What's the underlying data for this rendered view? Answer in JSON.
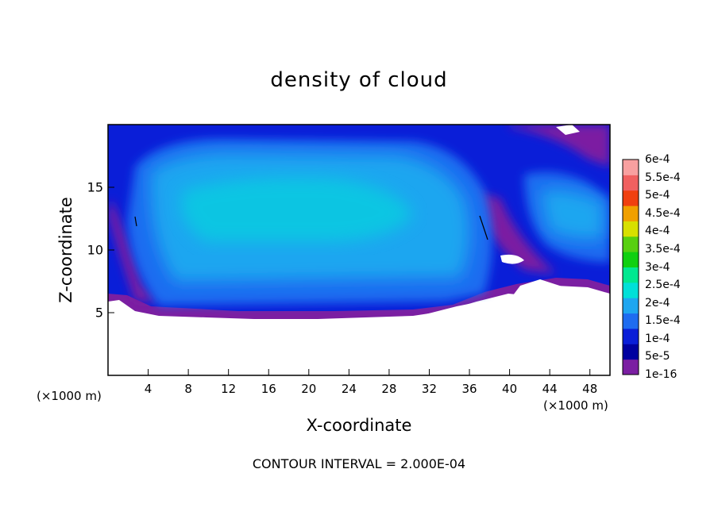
{
  "chart_data": {
    "type": "heatmap",
    "title": "density of cloud",
    "xlabel": "X-coordinate",
    "ylabel": "Z-coordinate",
    "x_unit_label": "(×1000 m)",
    "xlim": [
      0,
      50
    ],
    "ylim": [
      0,
      20
    ],
    "x_ticks": [
      "4",
      "8",
      "12",
      "16",
      "20",
      "24",
      "28",
      "32",
      "36",
      "40",
      "44",
      "48"
    ],
    "y_ticks": [
      "5",
      "10",
      "15"
    ],
    "colorbar_levels": [
      "1e-16",
      "5e-5",
      "1e-4",
      "1.5e-4",
      "2e-4",
      "2.5e-4",
      "3e-4",
      "3.5e-4",
      "4e-4",
      "4.5e-4",
      "5e-4",
      "5.5e-4",
      "6e-4"
    ],
    "colorbar_colors": [
      "#7b1fa2",
      "#0000a0",
      "#0a1ed8",
      "#1e6cf0",
      "#1ea6f0",
      "#00e0d8",
      "#00e890",
      "#10d010",
      "#58d010",
      "#d8e000",
      "#f0a000",
      "#f04010",
      "#f06060",
      "#f8a0a0"
    ],
    "footer": "CONTOUR INTERVAL = 2.000E-04"
  }
}
